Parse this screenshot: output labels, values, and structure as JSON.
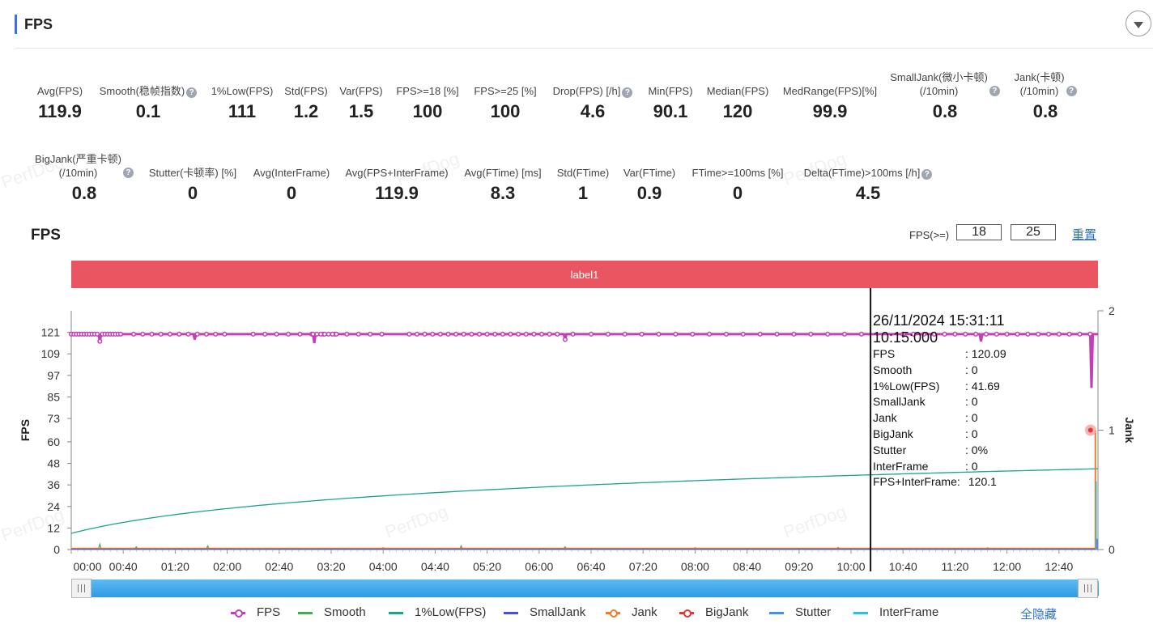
{
  "section": {
    "title": "FPS",
    "collapse_icon": "chevron-down-icon"
  },
  "stats": [
    {
      "label": "Avg(FPS)",
      "value": "119.9",
      "help": false
    },
    {
      "label": "Smooth(稳帧指数)",
      "value": "0.1",
      "help": true
    },
    {
      "label": "1%Low(FPS)",
      "value": "111",
      "help": false
    },
    {
      "label": "Std(FPS)",
      "value": "1.2",
      "help": false
    },
    {
      "label": "Var(FPS)",
      "value": "1.5",
      "help": false
    },
    {
      "label": "FPS>=18 [%]",
      "value": "100",
      "help": false
    },
    {
      "label": "FPS>=25 [%]",
      "value": "100",
      "help": false
    },
    {
      "label": "Drop(FPS) [/h]",
      "value": "4.6",
      "help": true
    },
    {
      "label": "Min(FPS)",
      "value": "90.1",
      "help": false
    },
    {
      "label": "Median(FPS)",
      "value": "120",
      "help": false
    },
    {
      "label": "MedRange(FPS)[%]",
      "value": "99.9",
      "help": false
    },
    {
      "label": "SmallJank(微小卡顿)\n(/10min)",
      "value": "0.8",
      "help": true
    },
    {
      "label": "Jank(卡顿)\n(/10min)",
      "value": "0.8",
      "help": true
    },
    {
      "label": "BigJank(严重卡顿)\n(/10min)",
      "value": "0.8",
      "help": true
    },
    {
      "label": "Stutter(卡顿率) [%]",
      "value": "0",
      "help": false
    },
    {
      "label": "Avg(InterFrame)",
      "value": "0",
      "help": false
    },
    {
      "label": "Avg(FPS+InterFrame)",
      "value": "119.9",
      "help": false
    },
    {
      "label": "Avg(FTime) [ms]",
      "value": "8.3",
      "help": false
    },
    {
      "label": "Std(FTime)",
      "value": "1",
      "help": false
    },
    {
      "label": "Var(FTime)",
      "value": "0.9",
      "help": false
    },
    {
      "label": "FTime>=100ms [%]",
      "value": "0",
      "help": false
    },
    {
      "label": "Delta(FTime)>100ms [/h]",
      "value": "4.5",
      "help": true
    }
  ],
  "chart_header": {
    "title": "FPS",
    "threshold_label": "FPS(>=)",
    "threshold1": "18",
    "threshold2": "25",
    "reset_label": "重置"
  },
  "label_bar": {
    "text": "label1"
  },
  "watermark": "PerfDog",
  "chart_data": {
    "type": "line",
    "ylabel": "FPS",
    "y2label": "Jank",
    "y_ticks": [
      "0",
      "12",
      "24",
      "36",
      "48",
      "60",
      "73",
      "85",
      "97",
      "109",
      "121"
    ],
    "y_range": [
      0,
      133
    ],
    "y2_ticks": [
      "0",
      "1",
      "2"
    ],
    "y2_range": [
      0,
      2
    ],
    "x_ticks": [
      "00:00",
      "00:40",
      "01:20",
      "02:00",
      "02:40",
      "03:20",
      "04:00",
      "04:40",
      "05:20",
      "06:00",
      "06:40",
      "07:20",
      "08:00",
      "08:40",
      "09:20",
      "10:00",
      "10:40",
      "11:20",
      "12:00",
      "12:40"
    ],
    "x_range_seconds": [
      0,
      790
    ],
    "series": [
      {
        "name": "FPS",
        "color": "#c43fb5",
        "base": 120,
        "dips": [
          [
            22,
            116
          ],
          [
            187,
            115
          ],
          [
            95,
            117
          ],
          [
            380,
            117
          ],
          [
            700,
            116
          ],
          [
            785,
            90
          ]
        ]
      },
      {
        "name": "Smooth",
        "color": "#3fae4f"
      },
      {
        "name": "1%Low(FPS)",
        "color": "#1aa58c",
        "start": 9,
        "end": 45
      },
      {
        "name": "SmallJank",
        "color": "#4d4ae0"
      },
      {
        "name": "Jank",
        "color": "#f07b2a",
        "spike_at": 788,
        "spike_value": 1
      },
      {
        "name": "BigJank",
        "color": "#e03838",
        "point_at": 788,
        "point_value": 1
      },
      {
        "name": "Stutter",
        "color": "#4a8ff0"
      },
      {
        "name": "InterFrame",
        "color": "#2bc4d6"
      }
    ],
    "cursor_at_seconds": 615
  },
  "tooltip": {
    "time": "26/11/2024 15:31:11 10:15:000",
    "rows": [
      {
        "k": "FPS",
        "v": ": 120.09"
      },
      {
        "k": "Smooth",
        "v": ": 0"
      },
      {
        "k": "1%Low(FPS)",
        "v": ": 41.69"
      },
      {
        "k": "SmallJank",
        "v": ": 0"
      },
      {
        "k": "Jank",
        "v": ": 0"
      },
      {
        "k": "BigJank",
        "v": ": 0"
      },
      {
        "k": "Stutter",
        "v": ": 0%"
      },
      {
        "k": "InterFrame",
        "v": ": 0"
      },
      {
        "k": "FPS+InterFrame:",
        "v": " 120.1"
      }
    ]
  },
  "legend": [
    {
      "name": "FPS",
      "color": "#c43fb5",
      "marker": true
    },
    {
      "name": "Smooth",
      "color": "#3fae4f",
      "marker": false
    },
    {
      "name": "1%Low(FPS)",
      "color": "#1aa58c",
      "marker": false
    },
    {
      "name": "SmallJank",
      "color": "#4d4ae0",
      "marker": false
    },
    {
      "name": "Jank",
      "color": "#f07b2a",
      "marker": true
    },
    {
      "name": "BigJank",
      "color": "#e03838",
      "marker": true
    },
    {
      "name": "Stutter",
      "color": "#4a8ff0",
      "marker": false
    },
    {
      "name": "InterFrame",
      "color": "#2bc4d6",
      "marker": false
    }
  ],
  "hide_all_label": "全隐藏"
}
